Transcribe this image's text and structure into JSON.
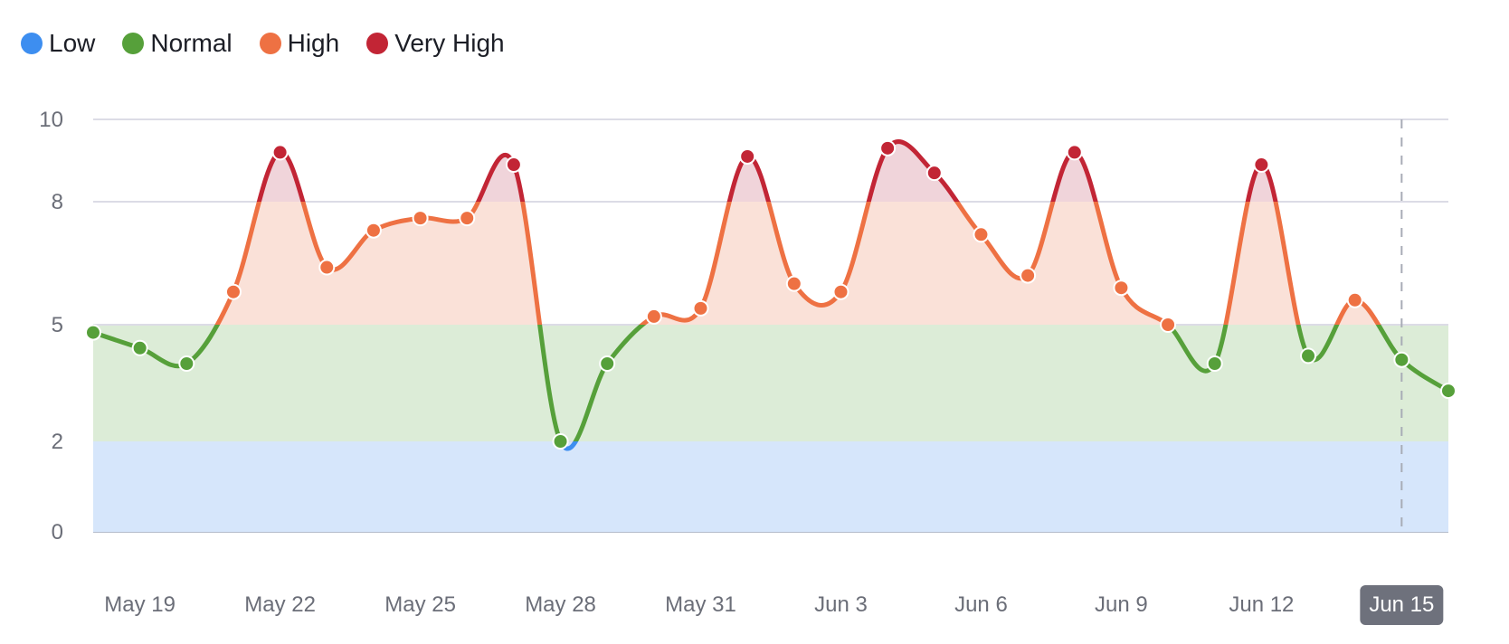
{
  "legend": [
    {
      "label": "Low",
      "color": "#3d8ef0"
    },
    {
      "label": "Normal",
      "color": "#56a03a"
    },
    {
      "label": "High",
      "color": "#ee7143"
    },
    {
      "label": "Very High",
      "color": "#c22535"
    }
  ],
  "chart_data": {
    "type": "line",
    "title": "",
    "xlabel": "",
    "ylabel": "",
    "x": [
      "May 18",
      "May 19",
      "May 20",
      "May 21",
      "May 22",
      "May 23",
      "May 24",
      "May 25",
      "May 26",
      "May 27",
      "May 28",
      "May 29",
      "May 30",
      "May 31",
      "Jun 1",
      "Jun 2",
      "Jun 3",
      "Jun 4",
      "Jun 5",
      "Jun 6",
      "Jun 7",
      "Jun 8",
      "Jun 9",
      "Jun 10",
      "Jun 11",
      "Jun 12",
      "Jun 13",
      "Jun 14",
      "Jun 15",
      "Jun 16"
    ],
    "values": [
      4.8,
      4.4,
      4.0,
      5.8,
      9.2,
      6.4,
      7.3,
      7.6,
      7.6,
      8.9,
      2.0,
      4.0,
      5.2,
      5.4,
      9.1,
      6.0,
      5.8,
      9.3,
      8.7,
      7.2,
      6.2,
      9.2,
      5.9,
      5.0,
      4.0,
      8.9,
      4.2,
      5.6,
      4.1,
      3.3
    ],
    "x_tick_labels": [
      "May 19",
      "May 22",
      "May 25",
      "May 28",
      "May 31",
      "Jun 3",
      "Jun 6",
      "Jun 9",
      "Jun 12",
      "Jun 15"
    ],
    "y_tick_labels": [
      "0",
      "2",
      "5",
      "8",
      "10"
    ],
    "y_ticks": [
      0,
      2,
      5,
      8,
      10
    ],
    "ylim": [
      0,
      10
    ],
    "grid": true,
    "legend_position": "top-left",
    "bands": [
      {
        "name": "Low",
        "from": 0,
        "to": 2,
        "line_color": "#3d8ef0",
        "fill_color": "#d6e6fb"
      },
      {
        "name": "Normal",
        "from": 2,
        "to": 5,
        "line_color": "#56a03a",
        "fill_color": "#dcecd7"
      },
      {
        "name": "High",
        "from": 5,
        "to": 8,
        "line_color": "#ee7143",
        "fill_color": "#fae1d8"
      },
      {
        "name": "Very High",
        "from": 8,
        "to": 10,
        "line_color": "#c22535",
        "fill_color": "#f0d4da"
      }
    ],
    "highlighted_x": "Jun 15"
  }
}
